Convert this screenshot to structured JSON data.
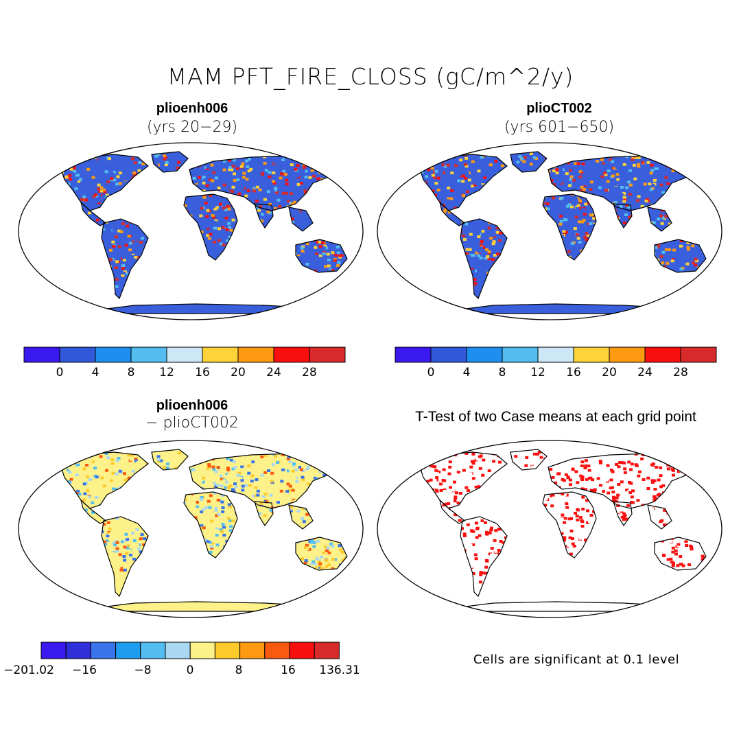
{
  "title": "MAM PFT_FIRE_CLOSS (gC/m^2/y)",
  "panels": {
    "top_left": {
      "case": "plioenh006",
      "years": "(yrs 20−29)"
    },
    "top_right": {
      "case": "plioCT002",
      "years": "(yrs 601−650)"
    },
    "bottom_left": {
      "case": "plioenh006",
      "minus": "− plioCT002"
    },
    "bottom_right": {
      "title": "T-Test of two Case means at each grid point",
      "note": "Cells are significant at 0.1 level"
    }
  },
  "colorbar_top": {
    "colors": [
      "#3a19f0",
      "#3058d9",
      "#1e8fee",
      "#53bdf0",
      "#cce8f7",
      "#fdd339",
      "#fd9a11",
      "#fa0f0f",
      "#d72b2b"
    ],
    "ticks": [
      "0",
      "4",
      "8",
      "12",
      "16",
      "20",
      "24",
      "28"
    ]
  },
  "colorbar_bottom": {
    "colors": [
      "#3a19f0",
      "#3030d9",
      "#3a74ea",
      "#1e9cee",
      "#53bdf0",
      "#aad8f0",
      "#fdf28a",
      "#fdca2c",
      "#fd9a11",
      "#fa5a10",
      "#f80f0f",
      "#d72b2b"
    ],
    "ticks": [
      "−201.02",
      "−16",
      "−8",
      "0",
      "8",
      "16",
      "136.31"
    ]
  },
  "colors": {
    "map_base": "#3a5fdc",
    "diff_base": "#fdf28a",
    "significant": "#fa0f0f"
  }
}
